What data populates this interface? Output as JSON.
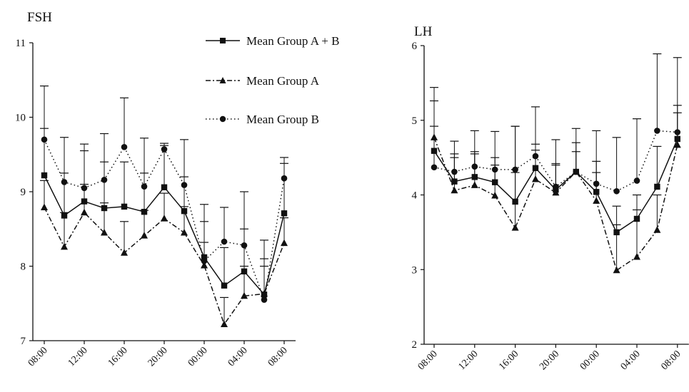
{
  "legend": [
    {
      "label": "Mean Group A + B",
      "style": "solid",
      "marker": "square"
    },
    {
      "label": "Mean Group A",
      "style": "dashdot",
      "marker": "triangle"
    },
    {
      "label": "Mean Group B",
      "style": "dotted",
      "marker": "circle"
    }
  ],
  "chart_data": [
    {
      "type": "line",
      "title": "FSH",
      "xlabel": "",
      "ylabel": "",
      "ylim": [
        7,
        11
      ],
      "yticks": [
        "7",
        "8",
        "9",
        "10",
        "11"
      ],
      "x_tick_labels": [
        "08:00",
        "12:00",
        "16:00",
        "20:00",
        "00:00",
        "04:00",
        "08:00"
      ],
      "x_tick_positions": [
        0,
        2,
        4,
        6,
        8,
        10,
        12
      ],
      "x": [
        "08:00",
        "10:00",
        "12:00",
        "14:00",
        "16:00",
        "18:00",
        "20:00",
        "22:00",
        "00:00",
        "02:00",
        "04:00",
        "06:00",
        "08:00"
      ],
      "series": [
        {
          "name": "Mean Group A + B",
          "values": [
            9.22,
            8.68,
            8.87,
            8.78,
            8.8,
            8.73,
            9.06,
            8.74,
            8.12,
            7.74,
            7.93,
            7.62,
            8.71
          ],
          "error_upper": [
            9.85,
            9.25,
            9.55,
            9.4,
            9.4,
            9.25,
            9.62,
            9.2,
            8.6,
            8.25,
            8.5,
            8.1,
            9.38
          ]
        },
        {
          "name": "Mean Group A",
          "values": [
            8.79,
            8.26,
            8.72,
            8.45,
            8.18,
            8.41,
            8.64,
            8.45,
            8.01,
            7.22,
            7.6,
            7.63,
            8.31
          ],
          "error_upper": [
            9.15,
            8.72,
            9.1,
            8.85,
            8.6,
            8.75,
            8.98,
            8.8,
            8.32,
            7.58,
            8.0,
            8.0,
            8.65
          ]
        },
        {
          "name": "Mean Group B",
          "values": [
            9.7,
            9.13,
            9.05,
            9.16,
            9.6,
            9.07,
            9.57,
            9.09,
            8.07,
            8.33,
            8.28,
            7.55,
            9.18
          ],
          "error_upper": [
            10.42,
            9.73,
            9.64,
            9.78,
            10.26,
            9.72,
            9.65,
            9.7,
            8.83,
            8.79,
            9.0,
            8.35,
            9.46
          ]
        }
      ]
    },
    {
      "type": "line",
      "title": "LH",
      "xlabel": "",
      "ylabel": "",
      "ylim": [
        2,
        6
      ],
      "yticks": [
        "2",
        "3",
        "4",
        "5",
        "6"
      ],
      "x_tick_labels": [
        "08:00",
        "12:00",
        "16:00",
        "20:00",
        "00:00",
        "04:00",
        "08:00"
      ],
      "x_tick_positions": [
        0,
        2,
        4,
        6,
        8,
        10,
        12
      ],
      "x": [
        "08:00",
        "10:00",
        "12:00",
        "14:00",
        "16:00",
        "18:00",
        "20:00",
        "22:00",
        "00:00",
        "02:00",
        "04:00",
        "06:00",
        "08:00"
      ],
      "series": [
        {
          "name": "Mean Group A + B",
          "values": [
            4.59,
            4.18,
            4.24,
            4.17,
            3.91,
            4.36,
            4.07,
            4.31,
            4.04,
            3.5,
            3.68,
            4.11,
            4.75
          ],
          "error_upper": [
            5.26,
            4.55,
            4.58,
            4.5,
            4.3,
            4.68,
            4.42,
            4.58,
            4.45,
            3.85,
            4.0,
            4.65,
            5.2
          ]
        },
        {
          "name": "Mean Group A",
          "values": [
            4.77,
            4.06,
            4.13,
            3.99,
            3.56,
            4.21,
            4.03,
            4.31,
            3.92,
            2.99,
            3.17,
            3.53,
            4.67
          ],
          "error_upper": [
            5.44,
            4.5,
            4.55,
            4.4,
            4.92,
            4.6,
            4.4,
            4.7,
            4.3,
            3.6,
            3.8,
            4.0,
            5.1
          ]
        },
        {
          "name": "Mean Group B",
          "values": [
            4.37,
            4.31,
            4.38,
            4.34,
            4.34,
            4.52,
            4.11,
            4.31,
            4.15,
            4.05,
            4.19,
            4.86,
            4.84
          ],
          "error_upper": [
            4.92,
            4.72,
            4.86,
            4.85,
            4.92,
            5.18,
            4.74,
            4.89,
            4.86,
            4.77,
            5.02,
            5.89,
            5.84
          ]
        }
      ]
    }
  ]
}
